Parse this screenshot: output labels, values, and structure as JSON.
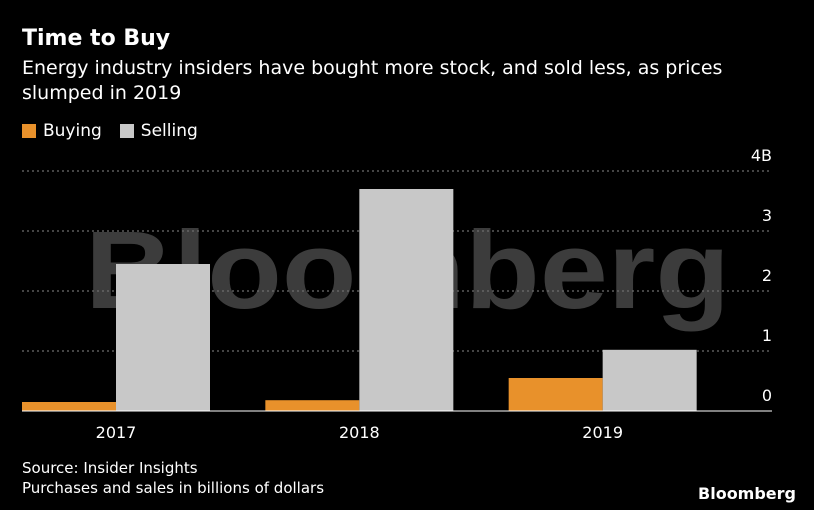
{
  "header": {
    "title": "Time to Buy",
    "subtitle": "Energy industry insiders have bought more stock, and sold less, as prices slumped in 2019"
  },
  "legend": [
    {
      "label": "Buying",
      "color": "#E8912B"
    },
    {
      "label": "Selling",
      "color": "#C8C8C8"
    }
  ],
  "chart_data": {
    "type": "bar",
    "categories": [
      "2017",
      "2018",
      "2019"
    ],
    "series": [
      {
        "name": "Buying",
        "values": [
          0.15,
          0.18,
          0.55
        ],
        "color": "#E8912B"
      },
      {
        "name": "Selling",
        "values": [
          2.45,
          3.7,
          1.02
        ],
        "color": "#C8C8C8"
      }
    ],
    "yticks": [
      0,
      1,
      2,
      3,
      4
    ],
    "ytick_labels": [
      "0",
      "1",
      "2",
      "3",
      "4B"
    ],
    "ylim": [
      0,
      4
    ],
    "grid": true,
    "legend_position": "top-left",
    "watermark": "Bloomberg"
  },
  "footer": {
    "source": "Source: Insider Insights",
    "note": "Purchases and sales in billions of dollars"
  },
  "brand": "Bloomberg"
}
